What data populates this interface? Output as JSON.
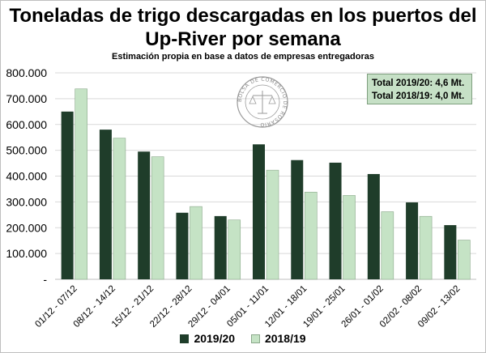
{
  "title_line1": "Toneladas de trigo descargadas en los puertos del",
  "title_line2": "Up-River por semana",
  "subtitle": "Estimación propia en base a datos de empresas entregadoras",
  "totals": {
    "line1": "Total 2019/20: 4,6 Mt.",
    "line2": "Total 2018/19: 4,0 Mt."
  },
  "seal": {
    "text": "BOLSA DE COMERCIO DE ROSARIO"
  },
  "colors": {
    "series_2019": "#1f3d2a",
    "series_2018": "#c5e3c5",
    "series_2018_border": "#8aa88a",
    "grid": "#d9d9d9"
  },
  "chart_data": {
    "type": "bar",
    "title": "Toneladas de trigo descargadas en los puertos del Up-River por semana",
    "subtitle": "Estimación propia en base a datos de empresas entregadoras",
    "categories": [
      "01/12 - 07/12",
      "08/12 - 14/12",
      "15/12 - 21/12",
      "22/12 - 28/12",
      "29/12 - 04/01",
      "05/01 - 11/01",
      "12/01 - 18/01",
      "19/01 - 25/01",
      "26/01 - 01/02",
      "02/02 - 08/02",
      "09/02 - 13/02"
    ],
    "series": [
      {
        "name": "2019/20",
        "values": [
          650000,
          580000,
          495000,
          258000,
          245000,
          523000,
          462000,
          452000,
          408000,
          298000,
          210000
        ]
      },
      {
        "name": "2018/19",
        "values": [
          738000,
          547000,
          475000,
          282000,
          230000,
          423000,
          338000,
          325000,
          262000,
          244000,
          152000
        ]
      }
    ],
    "ylim": [
      0,
      800000
    ],
    "yticks": [
      0,
      100000,
      200000,
      300000,
      400000,
      500000,
      600000,
      700000,
      800000
    ],
    "ytick_labels": [
      "-",
      "100.000",
      "200.000",
      "300.000",
      "400.000",
      "500.000",
      "600.000",
      "700.000",
      "800.000"
    ],
    "grid": true,
    "legend_position": "bottom"
  }
}
